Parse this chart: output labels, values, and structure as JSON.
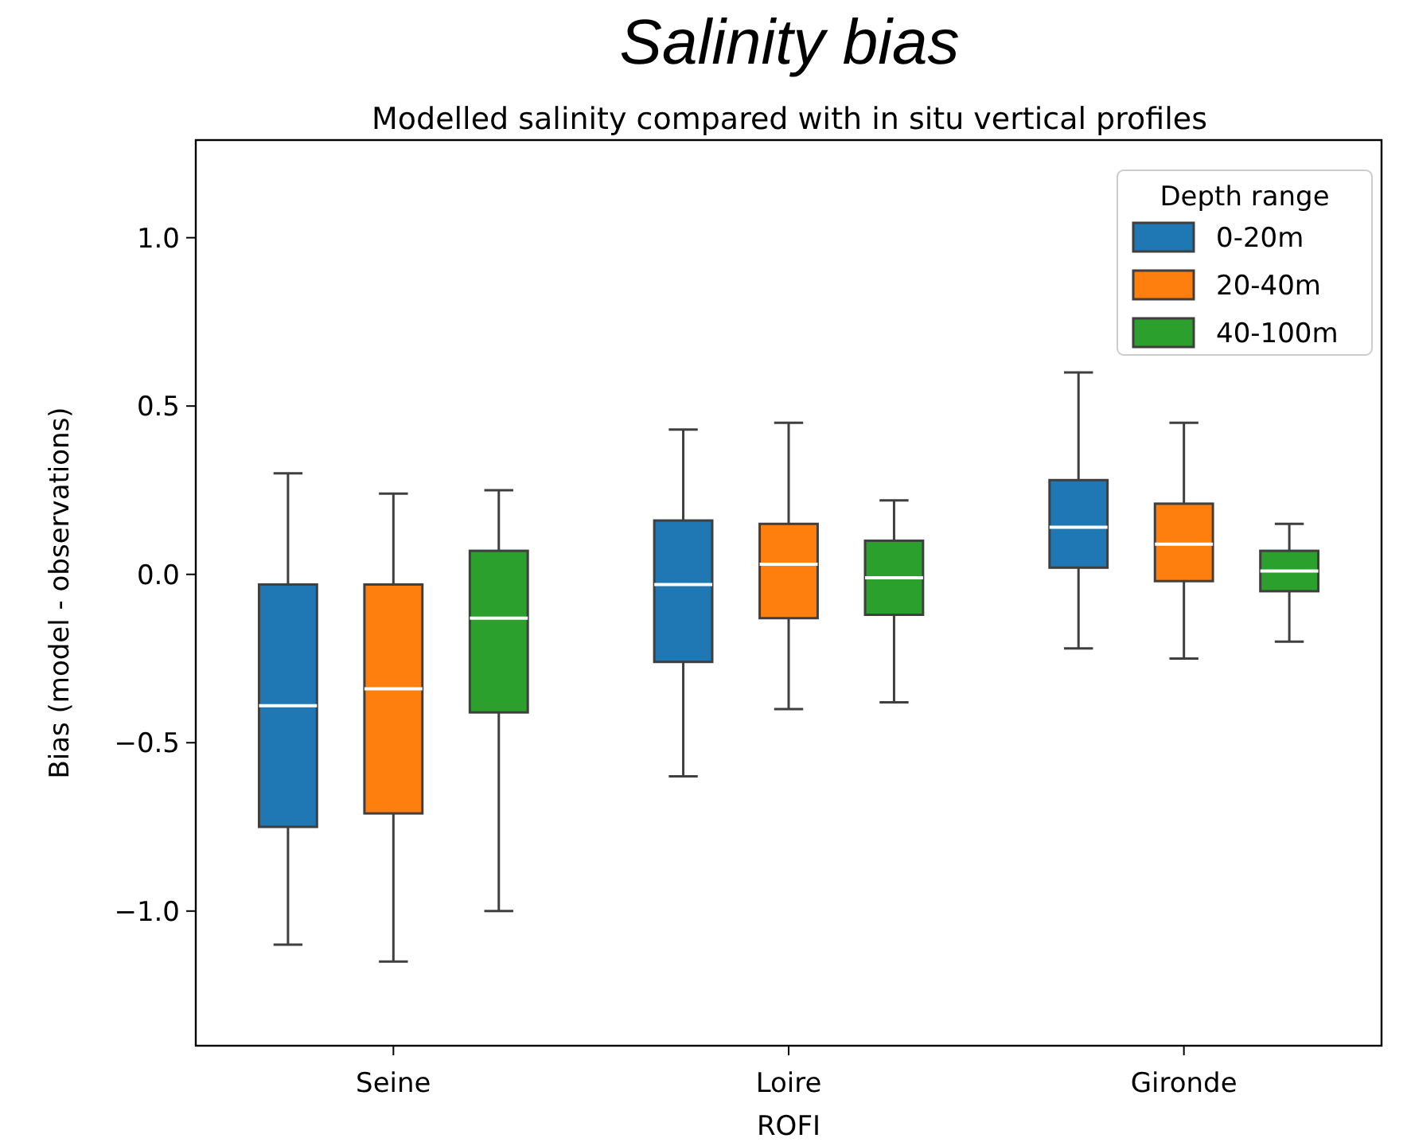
{
  "chart_data": {
    "type": "box",
    "title": "Salinity bias",
    "subtitle": "Modelled salinity compared with in situ vertical profiles",
    "xlabel": "ROFI",
    "ylabel": "Bias (model - observations)",
    "legend_title": "Depth range",
    "legend": "top right",
    "grid": false,
    "categories": [
      "Seine",
      "Loire",
      "Gironde"
    ],
    "ylim": [
      -1.4,
      1.29
    ],
    "yticks": [
      {
        "value": -1,
        "label": "−1.0"
      },
      {
        "value": -0.5,
        "label": "−0.5"
      },
      {
        "value": 0,
        "label": "0.0"
      },
      {
        "value": 0.5,
        "label": "0.5"
      },
      {
        "value": 1,
        "label": "1.0"
      }
    ],
    "series": [
      {
        "name": "0-20m",
        "color": "#1f77b4",
        "boxes": [
          {
            "low": -1.1,
            "q1": -0.75,
            "median": -0.39,
            "q3": -0.03,
            "high": 0.3
          },
          {
            "low": -0.6,
            "q1": -0.26,
            "median": -0.03,
            "q3": 0.16,
            "high": 0.43
          },
          {
            "low": -0.22,
            "q1": 0.02,
            "median": 0.14,
            "q3": 0.28,
            "high": 0.6
          }
        ]
      },
      {
        "name": "20-40m",
        "color": "#ff7f0e",
        "boxes": [
          {
            "low": -1.15,
            "q1": -0.71,
            "median": -0.34,
            "q3": -0.03,
            "high": 0.24
          },
          {
            "low": -0.4,
            "q1": -0.13,
            "median": 0.03,
            "q3": 0.15,
            "high": 0.45
          },
          {
            "low": -0.25,
            "q1": -0.02,
            "median": 0.09,
            "q3": 0.21,
            "high": 0.45
          }
        ]
      },
      {
        "name": "40-100m",
        "color": "#2ca02c",
        "boxes": [
          {
            "low": -1.0,
            "q1": -0.41,
            "median": -0.13,
            "q3": 0.07,
            "high": 0.25
          },
          {
            "low": -0.38,
            "q1": -0.12,
            "median": -0.01,
            "q3": 0.1,
            "high": 0.22
          },
          {
            "low": -0.2,
            "q1": -0.05,
            "median": 0.01,
            "q3": 0.07,
            "high": 0.15
          }
        ]
      }
    ]
  }
}
